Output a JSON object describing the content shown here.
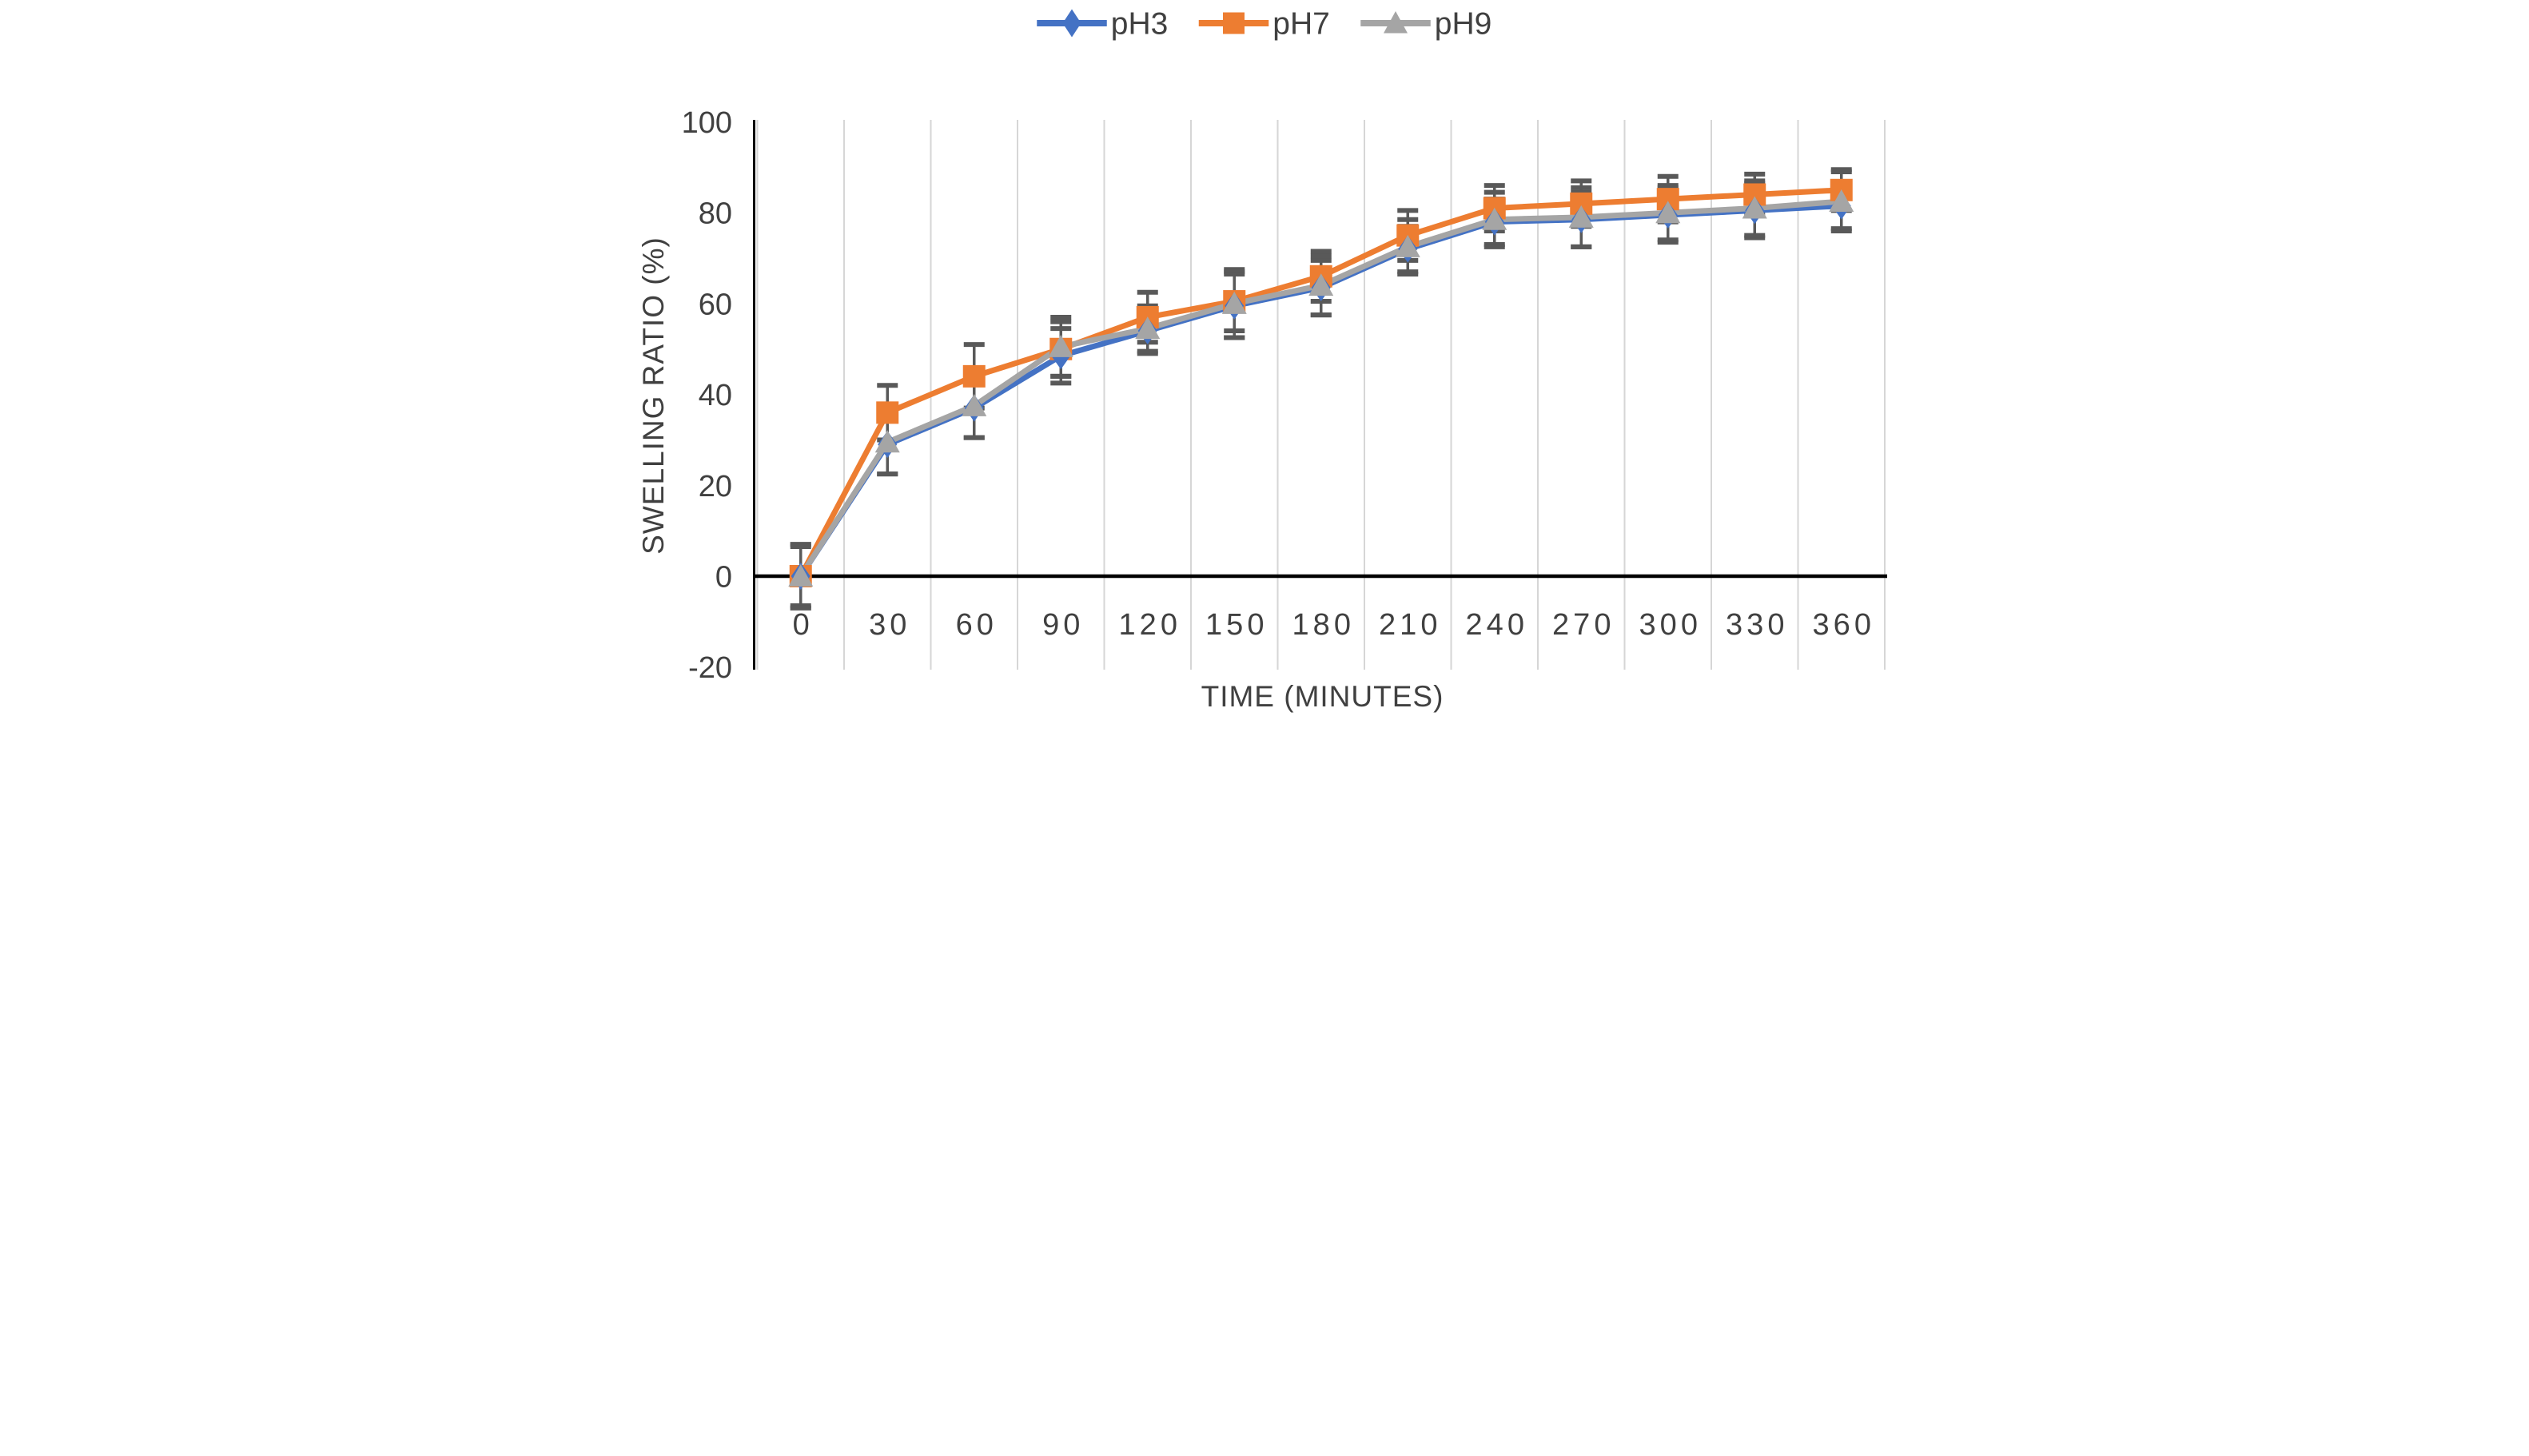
{
  "chart_data": {
    "type": "line",
    "title": "",
    "xlabel": "TIME (MINUTES)",
    "ylabel": "SWELLING RATIO (%)",
    "x": [
      0,
      30,
      60,
      90,
      120,
      150,
      180,
      210,
      240,
      270,
      300,
      330,
      360
    ],
    "x_tick_labels": [
      "0",
      "30",
      "60",
      "90",
      "120",
      "150",
      "180",
      "210",
      "240",
      "270",
      "300",
      "330",
      "360"
    ],
    "yticks": [
      100,
      80,
      60,
      40,
      20,
      0,
      -20
    ],
    "ylim": [
      -20,
      100
    ],
    "grid": "vertical-only",
    "legend_position": "top-center",
    "series": [
      {
        "name": "pH3",
        "color": "#4472C4",
        "marker": "diamond",
        "values": [
          0,
          29,
          37,
          48.5,
          54,
          59.5,
          63.5,
          72,
          78,
          78.5,
          79.5,
          80.5,
          81.5
        ],
        "errors": [
          7,
          6.5,
          6.5,
          6,
          5,
          7,
          6,
          5,
          5,
          6,
          6,
          6,
          5
        ]
      },
      {
        "name": "pH7",
        "color": "#ED7D31",
        "marker": "square",
        "values": [
          0,
          36,
          44,
          50,
          57,
          60.5,
          66,
          75,
          81,
          82,
          83,
          84,
          85
        ],
        "errors": [
          6.5,
          6,
          7,
          6,
          5.5,
          6.5,
          5.5,
          5.5,
          5,
          5,
          5,
          4.5,
          4.5
        ]
      },
      {
        "name": "pH9",
        "color": "#A5A5A5",
        "marker": "triangle",
        "values": [
          0,
          29.5,
          37.5,
          50.5,
          54.5,
          60,
          64,
          72.5,
          78.5,
          79,
          80,
          81,
          82.5
        ],
        "errors": [
          7,
          7,
          7,
          6.5,
          5,
          7.5,
          6.5,
          6,
          6,
          6.5,
          6,
          6,
          6.5
        ]
      }
    ]
  },
  "styles": {
    "gridline_color": "#D6D6D6",
    "axis_color": "#000000",
    "error_bar_color": "#595959",
    "background": "#FFFFFF"
  }
}
